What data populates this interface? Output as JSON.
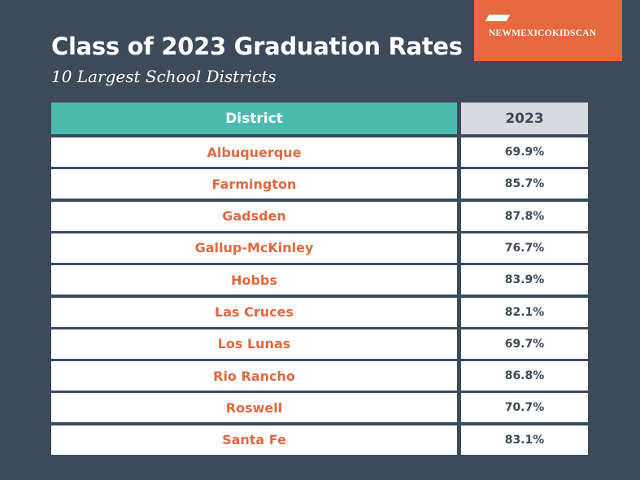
{
  "header": {
    "title": "Class of 2023 Graduation Rates",
    "subtitle": "10 Largest School Districts",
    "logo": "NEWMEXICOKIDSCAN"
  },
  "table": {
    "columns": [
      "District",
      "2023"
    ],
    "rows": [
      [
        "Albuquerque",
        "69.9%"
      ],
      [
        "Farmington",
        "85.7%"
      ],
      [
        "Gadsden",
        "87.8%"
      ],
      [
        "Gallup-McKinley",
        "76.7%"
      ],
      [
        "Hobbs",
        "83.9%"
      ],
      [
        "Las Cruces",
        "82.1%"
      ],
      [
        "Los Lunas",
        "69.7%"
      ],
      [
        "Rio Rancho",
        "86.8%"
      ],
      [
        "Roswell",
        "70.7%"
      ],
      [
        "Santa Fe",
        "83.1%"
      ]
    ]
  }
}
